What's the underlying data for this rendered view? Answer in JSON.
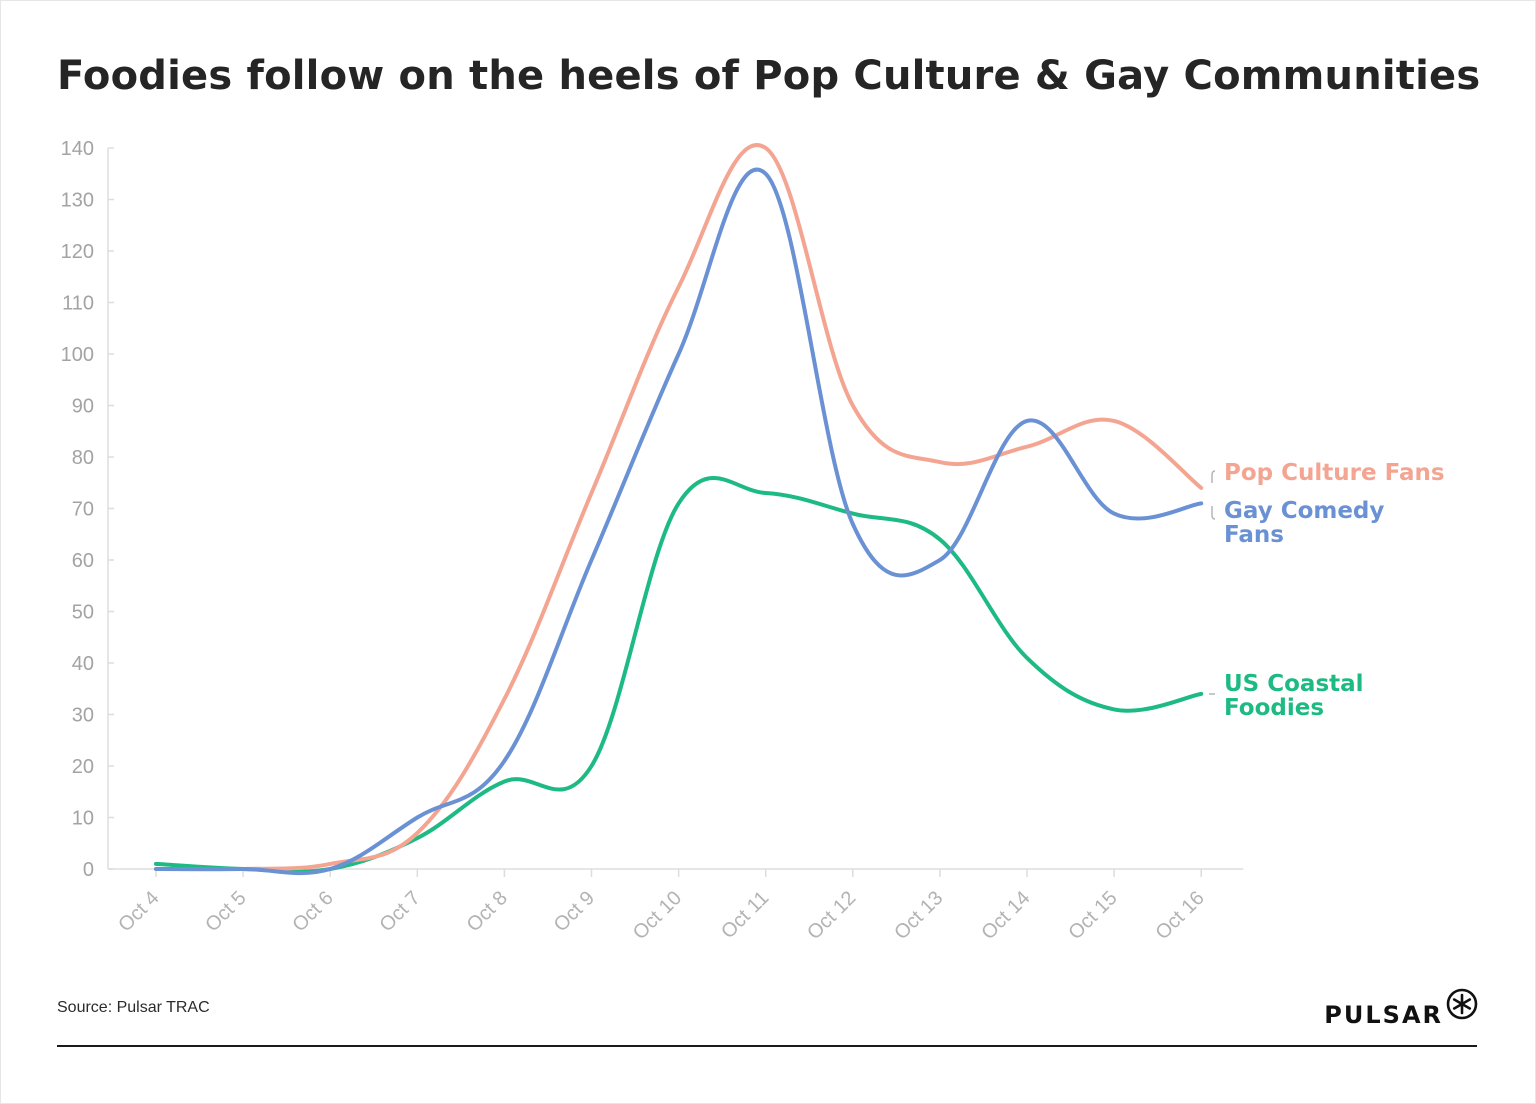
{
  "title": "Foodies follow on the heels of Pop Culture & Gay Communities",
  "source": "Source: Pulsar TRAC",
  "logo": {
    "text": "PULSAR",
    "icon": "asterisk-circle-icon"
  },
  "colors": {
    "pop_culture": "#f4a592",
    "gay_comedy": "#6a91d4",
    "coastal_foodies": "#1dba83",
    "axis": "#dddddd",
    "tick_text": "#a3a3a3"
  },
  "chart_data": {
    "type": "line",
    "title": "Foodies follow on the heels of Pop Culture & Gay Communities",
    "xlabel": "",
    "ylabel": "",
    "categories": [
      "Oct 4",
      "Oct 5",
      "Oct 6",
      "Oct 7",
      "Oct 8",
      "Oct 9",
      "Oct 10",
      "Oct 11",
      "Oct 12",
      "Oct 13",
      "Oct 14",
      "Oct 15",
      "Oct 16"
    ],
    "ylim": [
      0,
      140
    ],
    "yticks": [
      0,
      10,
      20,
      30,
      40,
      50,
      60,
      70,
      80,
      90,
      100,
      110,
      120,
      130,
      140
    ],
    "grid": false,
    "legend": "direct labels at right end of lines",
    "series": [
      {
        "name": "Pop Culture Fans",
        "label_lines": [
          "Pop Culture Fans"
        ],
        "color": "#f4a592",
        "values": [
          0,
          0,
          1,
          7,
          33,
          73,
          113,
          140,
          90,
          79,
          82,
          87,
          74
        ]
      },
      {
        "name": "Gay Comedy Fans",
        "label_lines": [
          "Gay Comedy",
          "Fans"
        ],
        "color": "#6a91d4",
        "values": [
          0,
          0,
          0,
          10,
          21,
          60,
          100,
          135,
          67,
          60,
          87,
          69,
          71
        ]
      },
      {
        "name": "US Coastal Foodies",
        "label_lines": [
          "US Coastal",
          "Foodies"
        ],
        "color": "#1dba83",
        "values": [
          1,
          0,
          0,
          6,
          17,
          20,
          71,
          73,
          69,
          64,
          41,
          31,
          34
        ]
      }
    ]
  }
}
